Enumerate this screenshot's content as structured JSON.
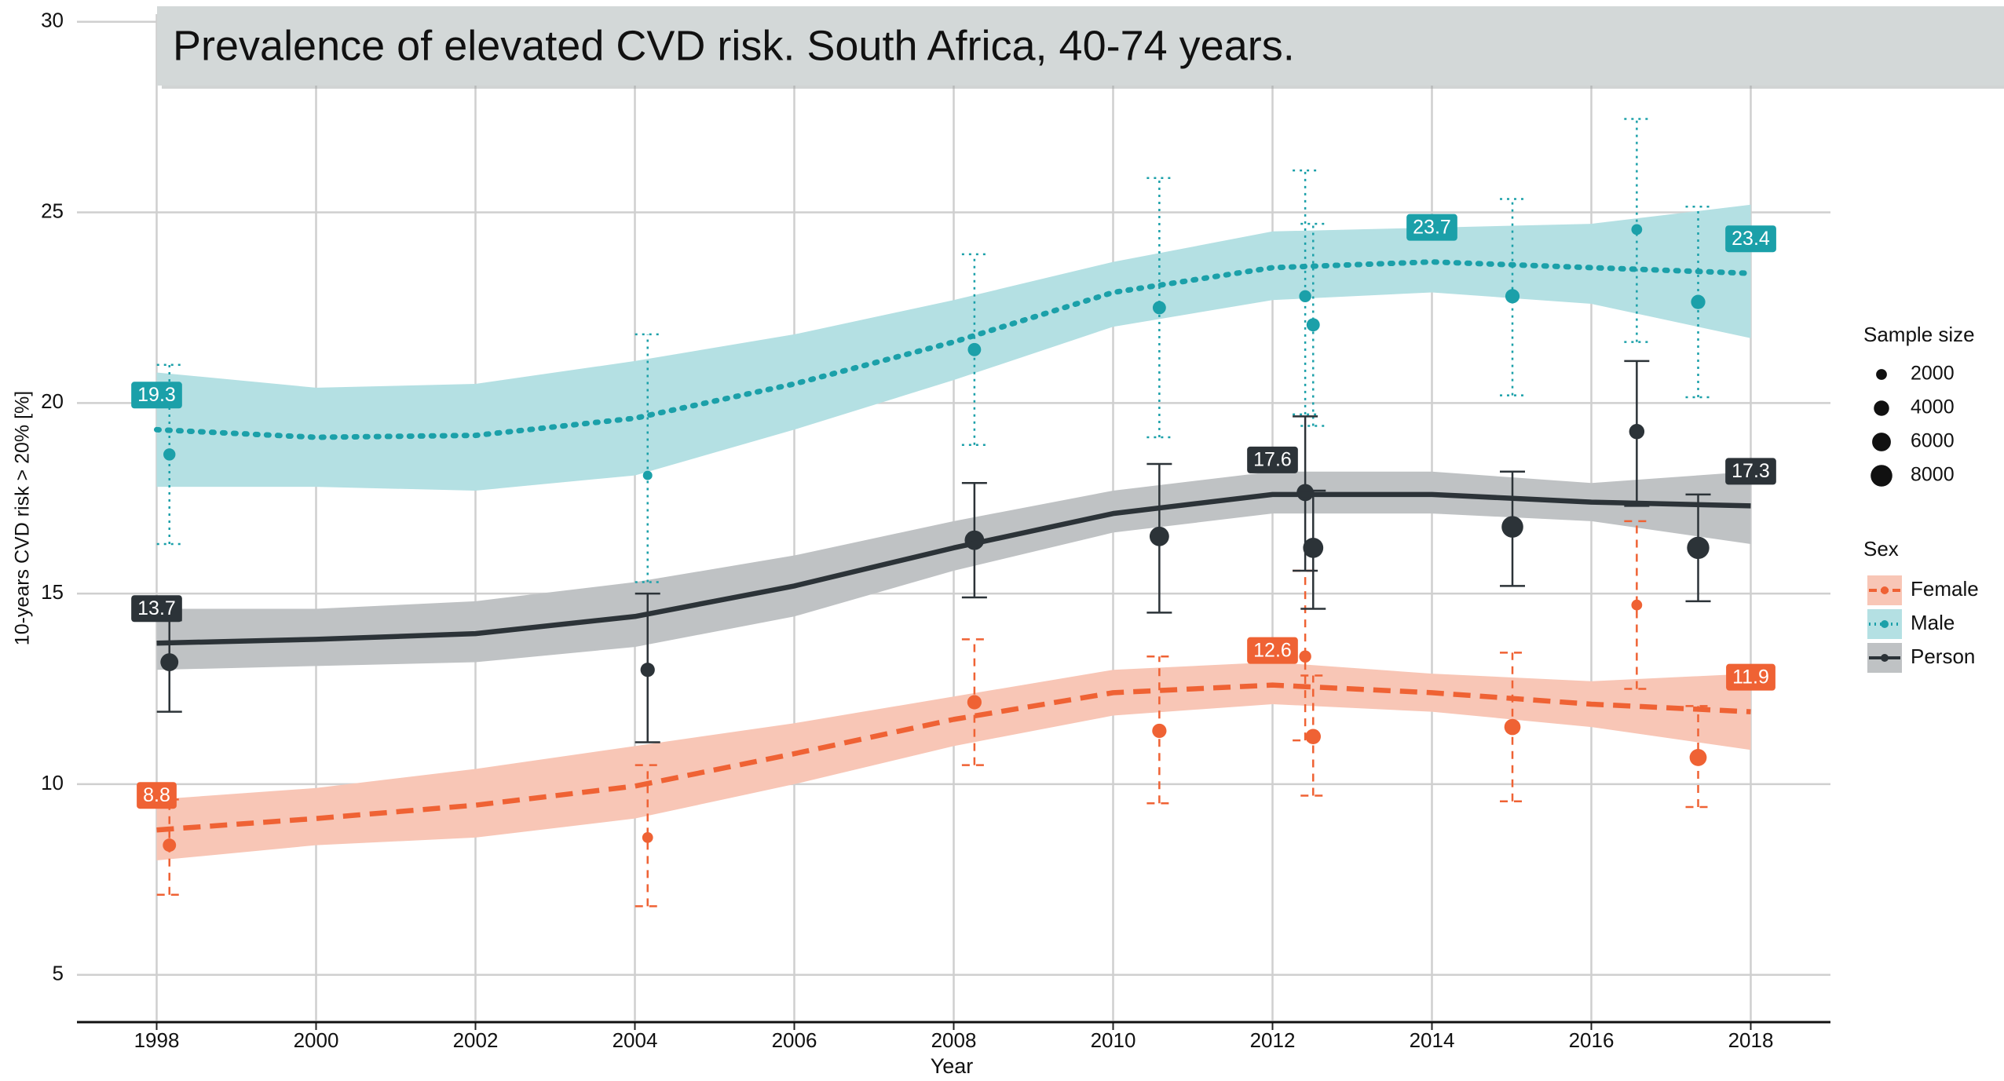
{
  "chart_data": {
    "type": "line",
    "title": "Prevalence of elevated CVD risk. South Africa, 40-74 years.",
    "x_label": "Year",
    "y_label": "10-years CVD risk > 20% [%]",
    "xlim": [
      1997,
      2019
    ],
    "ylim": [
      3.8,
      30.2
    ],
    "xticks": [
      1998,
      2000,
      2002,
      2004,
      2006,
      2008,
      2010,
      2012,
      2014,
      2016,
      2018
    ],
    "yticks": [
      5,
      10,
      15,
      20,
      25,
      30
    ],
    "grid": true,
    "x": [
      1998,
      2000,
      2002,
      2004,
      2006,
      2008,
      2010,
      2012,
      2014,
      2016,
      2018
    ],
    "legend_title": "Sex",
    "size_legend": {
      "title": "Sample size",
      "values": [
        2000,
        4000,
        6000,
        8000
      ]
    },
    "series": [
      {
        "name": "Female",
        "color": "#ef6234",
        "band_color": "#f8c6b6",
        "dash": "dashed",
        "values": [
          8.8,
          9.1,
          9.45,
          9.95,
          10.8,
          11.7,
          12.4,
          12.6,
          12.4,
          12.1,
          11.9
        ],
        "lower": [
          8.0,
          8.4,
          8.6,
          9.1,
          10.0,
          11.0,
          11.8,
          12.1,
          11.9,
          11.5,
          10.9
        ],
        "upper": [
          9.6,
          9.9,
          10.4,
          11.0,
          11.6,
          12.3,
          13.0,
          13.2,
          12.9,
          12.7,
          12.9
        ],
        "value_labels": [
          "8.8",
          null,
          null,
          null,
          null,
          null,
          null,
          "12.6",
          null,
          null,
          "11.9"
        ],
        "points": {
          "x": [
            1998.16,
            2004.16,
            2008.26,
            2010.58,
            2012.41,
            2012.51,
            2015.01,
            2016.57,
            2017.34
          ],
          "values": [
            8.4,
            8.6,
            12.15,
            11.4,
            13.35,
            11.25,
            11.5,
            14.7,
            10.7
          ],
          "lower": [
            7.1,
            6.8,
            10.5,
            9.5,
            11.15,
            9.7,
            9.55,
            12.5,
            9.4
          ],
          "upper": [
            9.6,
            10.5,
            13.8,
            13.35,
            15.6,
            12.85,
            13.45,
            16.9,
            12.05
          ],
          "sizes": [
            3000,
            2000,
            3500,
            3500,
            2500,
            4000,
            4500,
            2000,
            5000
          ]
        }
      },
      {
        "name": "Male",
        "color": "#1ba0a9",
        "band_color": "#b4e0e3",
        "dash": "dotted",
        "values": [
          19.3,
          19.1,
          19.15,
          19.6,
          20.5,
          21.6,
          22.9,
          23.55,
          23.7,
          23.55,
          23.4
        ],
        "lower": [
          17.8,
          17.8,
          17.7,
          18.1,
          19.3,
          20.6,
          22.0,
          22.7,
          22.9,
          22.6,
          21.7
        ],
        "upper": [
          20.8,
          20.4,
          20.5,
          21.1,
          21.8,
          22.7,
          23.7,
          24.5,
          24.6,
          24.7,
          25.2
        ],
        "value_labels": [
          "19.3",
          null,
          null,
          null,
          null,
          null,
          null,
          null,
          "23.7",
          null,
          "23.4"
        ],
        "points": {
          "x": [
            1998.16,
            2004.16,
            2008.26,
            2010.58,
            2012.41,
            2012.51,
            2015.01,
            2016.57,
            2017.34
          ],
          "values": [
            18.65,
            18.1,
            21.4,
            22.5,
            22.8,
            22.05,
            22.8,
            24.55,
            22.65
          ],
          "lower": [
            16.3,
            15.3,
            18.9,
            19.1,
            19.7,
            19.4,
            20.2,
            21.6,
            20.15
          ],
          "upper": [
            21.0,
            21.8,
            23.9,
            25.9,
            26.1,
            24.7,
            25.35,
            27.45,
            25.15
          ],
          "sizes": [
            2500,
            1500,
            3000,
            3000,
            2500,
            3000,
            3500,
            2000,
            3500
          ]
        }
      },
      {
        "name": "Person",
        "color": "#2c3338",
        "band_color": "#bfc2c4",
        "dash": "solid",
        "values": [
          13.7,
          13.8,
          13.95,
          14.4,
          15.2,
          16.2,
          17.1,
          17.6,
          17.6,
          17.4,
          17.3
        ],
        "lower": [
          13.0,
          13.1,
          13.2,
          13.6,
          14.4,
          15.6,
          16.6,
          17.1,
          17.1,
          16.9,
          16.3
        ],
        "upper": [
          14.6,
          14.6,
          14.8,
          15.3,
          16.0,
          16.9,
          17.7,
          18.2,
          18.2,
          17.9,
          18.2
        ],
        "value_labels": [
          "13.7",
          null,
          null,
          null,
          null,
          null,
          null,
          "17.6",
          null,
          null,
          "17.3"
        ],
        "points": {
          "x": [
            1998.16,
            2004.16,
            2008.26,
            2010.58,
            2012.41,
            2012.51,
            2015.01,
            2016.57,
            2017.34
          ],
          "values": [
            13.2,
            13.0,
            16.4,
            16.5,
            17.65,
            16.2,
            16.75,
            19.25,
            16.2
          ],
          "lower": [
            11.9,
            11.1,
            14.9,
            14.5,
            15.6,
            14.6,
            15.2,
            17.3,
            14.8
          ],
          "upper": [
            14.3,
            15.0,
            17.9,
            18.4,
            19.65,
            17.7,
            18.2,
            21.1,
            17.6
          ],
          "sizes": [
            5500,
            3500,
            6500,
            6500,
            5000,
            7000,
            8000,
            4000,
            8500
          ]
        }
      }
    ]
  }
}
